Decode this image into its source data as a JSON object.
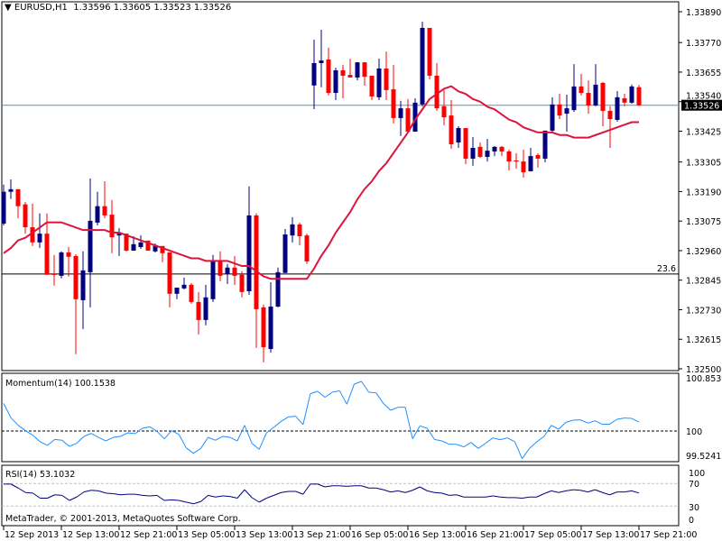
{
  "header": {
    "symbol": "EURUSD,H1",
    "ohlc": "1.33596 1.33605 1.33523 1.33526",
    "menu_icon": "triangle-down-icon"
  },
  "copyright": "MetaTrader, © 2001-2013, MetaQuotes Software Corp.",
  "colors": {
    "bull": "#000080",
    "bear": "#ff0000",
    "ma": "#dc143c",
    "momentum": "#1e90ff",
    "rsi": "#000080",
    "price_line": "#778899",
    "level_line": "#000000"
  },
  "chart_data": [
    {
      "type": "candlestick",
      "symbol": "EURUSD",
      "timeframe": "H1",
      "ylim": [
        1.325,
        1.3389
      ],
      "y_ticks": [
        "1.33890",
        "1.33770",
        "1.33655",
        "1.33540",
        "1.33425",
        "1.33305",
        "1.33190",
        "1.33075",
        "1.32960",
        "1.32845",
        "1.32730",
        "1.32615",
        "1.32500"
      ],
      "x_ticks": [
        "12 Sep 2013",
        "12 Sep 13:00",
        "12 Sep 21:00",
        "13 Sep 05:00",
        "13 Sep 13:00",
        "13 Sep 21:00",
        "16 Sep 05:00",
        "16 Sep 13:00",
        "16 Sep 21:00",
        "17 Sep 05:00",
        "17 Sep 13:00",
        "17 Sep 21:00"
      ],
      "current_price": {
        "value": 1.33526,
        "label": "1.33526"
      },
      "level_line": {
        "value": 1.32869,
        "label": "23.6"
      },
      "candles_ohlc": [
        [
          1.33065,
          1.33217,
          1.33058,
          1.33189
        ],
        [
          1.33189,
          1.33237,
          1.33161,
          1.33199
        ],
        [
          1.33199,
          1.33199,
          1.33086,
          1.33133
        ],
        [
          1.3314,
          1.3315,
          1.33026,
          1.33051
        ],
        [
          1.33051,
          1.33143,
          1.32978,
          1.32992
        ],
        [
          1.32992,
          1.33105,
          1.32971,
          1.33026
        ],
        [
          1.33026,
          1.33105,
          1.32866,
          1.32866
        ],
        [
          1.32869,
          1.32943,
          1.32824,
          1.32866
        ],
        [
          1.32862,
          1.32957,
          1.32852,
          1.32953
        ],
        [
          1.32953,
          1.32974,
          1.32859,
          1.32936
        ],
        [
          1.32939,
          1.32946,
          1.32557,
          1.32771
        ],
        [
          1.32767,
          1.32957,
          1.32655,
          1.32883
        ],
        [
          1.32876,
          1.33241,
          1.32739,
          1.33076
        ],
        [
          1.33069,
          1.33189,
          1.33058,
          1.33133
        ],
        [
          1.33133,
          1.3323,
          1.33086,
          1.33097
        ],
        [
          1.331,
          1.33157,
          1.3295,
          1.33012
        ],
        [
          1.33019,
          1.33047,
          1.32939,
          1.33026
        ],
        [
          1.33026,
          1.33026,
          1.32957,
          1.3296
        ],
        [
          1.3296,
          1.33016,
          1.3296,
          1.32985
        ],
        [
          1.32974,
          1.33019,
          1.32967,
          1.32992
        ],
        [
          1.32999,
          1.32999,
          1.3296,
          1.3296
        ],
        [
          1.32957,
          1.32988,
          1.32953,
          1.32978
        ],
        [
          1.32978,
          1.32978,
          1.32915,
          1.3295
        ],
        [
          1.32953,
          1.32953,
          1.32739,
          1.32792
        ],
        [
          1.32792,
          1.32816,
          1.32771,
          1.32816
        ],
        [
          1.32813,
          1.32855,
          1.32809,
          1.32827
        ],
        [
          1.32827,
          1.32834,
          1.32753,
          1.3276
        ],
        [
          1.3276,
          1.32799,
          1.32634,
          1.3269
        ],
        [
          1.3269,
          1.32827,
          1.32669,
          1.32778
        ],
        [
          1.32771,
          1.32943,
          1.3276,
          1.32922
        ],
        [
          1.32922,
          1.32957,
          1.32841,
          1.32862
        ],
        [
          1.32869,
          1.32908,
          1.3283,
          1.32894
        ],
        [
          1.32894,
          1.32939,
          1.32827,
          1.32862
        ],
        [
          1.32866,
          1.3288,
          1.32778,
          1.32799
        ],
        [
          1.32802,
          1.3321,
          1.32788,
          1.33097
        ],
        [
          1.33097,
          1.33105,
          1.32581,
          1.32732
        ],
        [
          1.32739,
          1.3275,
          1.32525,
          1.32584
        ],
        [
          1.32577,
          1.32837,
          1.32563,
          1.32742
        ],
        [
          1.32742,
          1.32894,
          1.32739,
          1.32876
        ],
        [
          1.32873,
          1.33044,
          1.32873,
          1.33023
        ],
        [
          1.33019,
          1.3309,
          1.32992,
          1.33062
        ],
        [
          1.33062,
          1.33069,
          1.32981,
          1.33016
        ],
        [
          1.33019,
          1.33026,
          1.32908,
          1.32918
        ],
        [
          1.33603,
          1.33781,
          1.33511,
          1.3369
        ],
        [
          1.3369,
          1.3382,
          1.33596,
          1.337
        ],
        [
          1.33704,
          1.3375,
          1.33564,
          1.33574
        ],
        [
          1.33574,
          1.33672,
          1.33546,
          1.33662
        ],
        [
          1.33662,
          1.33683,
          1.33553,
          1.33641
        ],
        [
          1.33644,
          1.33707,
          1.33634,
          1.33634
        ],
        [
          1.33634,
          1.33693,
          1.33623,
          1.33693
        ],
        [
          1.33693,
          1.33693,
          1.33602,
          1.33637
        ],
        [
          1.33641,
          1.33641,
          1.33546,
          1.3356
        ],
        [
          1.33557,
          1.33707,
          1.33546,
          1.33669
        ],
        [
          1.33669,
          1.33735,
          1.33546,
          1.33585
        ],
        [
          1.33588,
          1.33683,
          1.33455,
          1.33476
        ],
        [
          1.33476,
          1.33543,
          1.33406,
          1.33514
        ],
        [
          1.33514,
          1.3355,
          1.33423,
          1.33423
        ],
        [
          1.33423,
          1.33553,
          1.33423,
          1.33536
        ],
        [
          1.33529,
          1.33851,
          1.33522,
          1.33827
        ],
        [
          1.33827,
          1.33827,
          1.33627,
          1.33641
        ],
        [
          1.33641,
          1.3369,
          1.33504,
          1.33514
        ],
        [
          1.33522,
          1.33585,
          1.33448,
          1.33479
        ],
        [
          1.33486,
          1.33546,
          1.33356,
          1.33374
        ],
        [
          1.33381,
          1.33444,
          1.3336,
          1.33437
        ],
        [
          1.33437,
          1.33437,
          1.33297,
          1.33318
        ],
        [
          1.33318,
          1.33402,
          1.3329,
          1.3336
        ],
        [
          1.33364,
          1.33381,
          1.33321,
          1.33325
        ],
        [
          1.33325,
          1.33395,
          1.33307,
          1.33349
        ],
        [
          1.33346,
          1.33367,
          1.33328,
          1.33364
        ],
        [
          1.33364,
          1.33367,
          1.33328,
          1.33346
        ],
        [
          1.33346,
          1.33353,
          1.33272,
          1.33307
        ],
        [
          1.33311,
          1.33339,
          1.33279,
          1.33307
        ],
        [
          1.33307,
          1.33353,
          1.33244,
          1.33265
        ],
        [
          1.33269,
          1.3336,
          1.33269,
          1.33328
        ],
        [
          1.33332,
          1.33339,
          1.33283,
          1.33318
        ],
        [
          1.33318,
          1.33427,
          1.33304,
          1.33427
        ],
        [
          1.33427,
          1.33557,
          1.33423,
          1.33529
        ],
        [
          1.33529,
          1.33571,
          1.33472,
          1.33486
        ],
        [
          1.33493,
          1.33567,
          1.33423,
          1.33514
        ],
        [
          1.33507,
          1.33686,
          1.335,
          1.33599
        ],
        [
          1.33599,
          1.33648,
          1.33564,
          1.33574
        ],
        [
          1.33574,
          1.33623,
          1.33493,
          1.33525
        ],
        [
          1.33525,
          1.33686,
          1.33522,
          1.33606
        ],
        [
          1.33613,
          1.33616,
          1.33444,
          1.33504
        ],
        [
          1.33504,
          1.33522,
          1.3336,
          1.33472
        ],
        [
          1.33469,
          1.33581,
          1.33462,
          1.33557
        ],
        [
          1.33553,
          1.33571,
          1.33522,
          1.33536
        ],
        [
          1.33536,
          1.33606,
          1.33532,
          1.33599
        ],
        [
          1.33596,
          1.33605,
          1.33523,
          1.33526
        ]
      ],
      "moving_average": [
        1.3295,
        1.3297,
        1.33,
        1.3301,
        1.3303,
        1.3305,
        1.3307,
        1.3307,
        1.3307,
        1.3306,
        1.3305,
        1.3304,
        1.3304,
        1.3304,
        1.3304,
        1.3303,
        1.3303,
        1.3302,
        1.3301,
        1.33,
        1.3299,
        1.3298,
        1.3297,
        1.3296,
        1.3295,
        1.3294,
        1.3293,
        1.3293,
        1.3292,
        1.3292,
        1.3292,
        1.3292,
        1.3291,
        1.329,
        1.329,
        1.3288,
        1.3286,
        1.3285,
        1.3285,
        1.3285,
        1.3285,
        1.3285,
        1.3285,
        1.3289,
        1.3294,
        1.3298,
        1.3303,
        1.3307,
        1.3311,
        1.3316,
        1.332,
        1.3323,
        1.3327,
        1.333,
        1.3334,
        1.3338,
        1.3342,
        1.3347,
        1.3351,
        1.3355,
        1.3357,
        1.3359,
        1.336,
        1.3358,
        1.3357,
        1.3355,
        1.3354,
        1.3352,
        1.3351,
        1.3349,
        1.3347,
        1.3346,
        1.3344,
        1.3343,
        1.3342,
        1.3342,
        1.3342,
        1.3341,
        1.3341,
        1.334,
        1.334,
        1.334,
        1.3341,
        1.3342,
        1.3343,
        1.3344,
        1.3345,
        1.3346,
        1.3346
      ]
    },
    {
      "type": "line",
      "title": "Momentum(14) 100.1538",
      "y_ticks": [
        "100.8539",
        "100",
        "99.5241"
      ],
      "ylim": [
        99.5241,
        100.8539
      ],
      "reference_level": 100,
      "values": [
        100.476,
        100.228,
        100.098,
        100.005,
        99.928,
        99.814,
        99.752,
        99.855,
        99.84,
        99.736,
        99.788,
        99.907,
        99.959,
        99.891,
        99.829,
        99.891,
        99.907,
        99.969,
        99.953,
        100.047,
        100.072,
        99.995,
        99.865,
        100.005,
        99.943,
        99.71,
        99.617,
        99.7,
        99.891,
        99.84,
        99.907,
        99.891,
        99.829,
        100.098,
        99.788,
        99.684,
        99.969,
        100.062,
        100.166,
        100.243,
        100.254,
        100.109,
        100.642,
        100.683,
        100.58,
        100.668,
        100.694,
        100.461,
        100.807,
        100.8539,
        100.668,
        100.657,
        100.476,
        100.357,
        100.409,
        100.409,
        99.865,
        100.088,
        100.047,
        99.855,
        99.829,
        99.772,
        99.772,
        99.726,
        99.803,
        99.7,
        99.788,
        99.881,
        99.85,
        99.881,
        99.814,
        99.5241,
        99.7,
        99.814,
        99.907,
        100.098,
        100.031,
        100.15,
        100.186,
        100.192,
        100.135,
        100.176,
        100.114,
        100.119,
        100.202,
        100.223,
        100.217,
        100.1538
      ]
    },
    {
      "type": "line",
      "title": "RSI(14) 53.1032",
      "y_ticks": [
        "100",
        "70",
        "30",
        "0"
      ],
      "ylim": [
        0,
        100
      ],
      "levels": [
        70,
        30
      ],
      "values": [
        69,
        69,
        62,
        54,
        53,
        44,
        44,
        50,
        49,
        40,
        46,
        55,
        58,
        57,
        53,
        52,
        50,
        51,
        51,
        49,
        48,
        49,
        40,
        41,
        40,
        37,
        34,
        38,
        49,
        46,
        48,
        47,
        44,
        59,
        45,
        37,
        44,
        49,
        54,
        56,
        56,
        51,
        69,
        69,
        64,
        66,
        66,
        65,
        66,
        66,
        62,
        62,
        59,
        55,
        57,
        54,
        58,
        64,
        57,
        54,
        53,
        49,
        50,
        46,
        46,
        46,
        46,
        48,
        46,
        45,
        45,
        44,
        46,
        46,
        52,
        57,
        54,
        57,
        59,
        58,
        55,
        59,
        54,
        50,
        55,
        55,
        57,
        53.1032
      ]
    }
  ]
}
